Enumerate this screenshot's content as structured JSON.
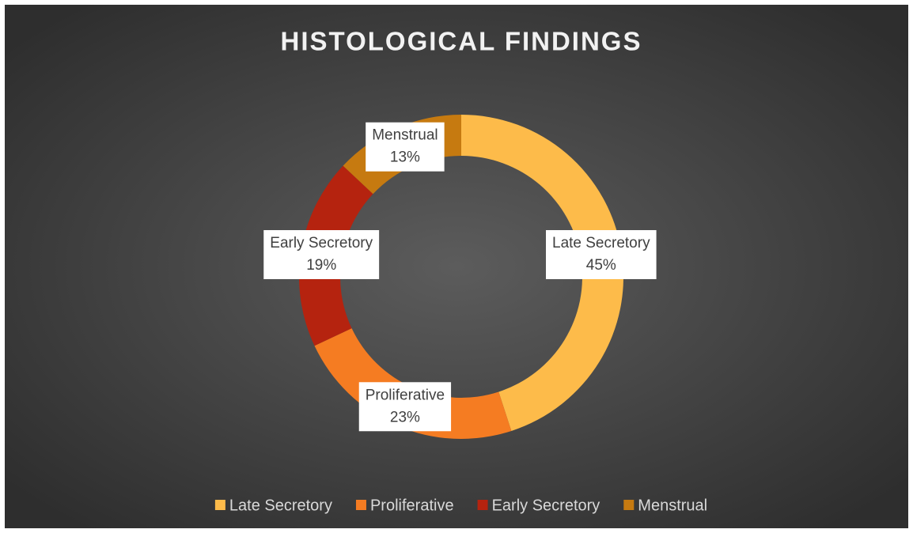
{
  "chart_data": {
    "type": "donut",
    "title": "HISTOLOGICAL FINDINGS",
    "categories": [
      "Late Secretory",
      "Proliferative",
      "Early Secretory",
      "Menstrual"
    ],
    "values": [
      45,
      23,
      19,
      13
    ],
    "value_labels": [
      "45%",
      "23%",
      "19%",
      "13%"
    ],
    "colors": [
      "#fdbb4a",
      "#f57c22",
      "#b5230f",
      "#c67a10"
    ],
    "legend": "bottom"
  }
}
